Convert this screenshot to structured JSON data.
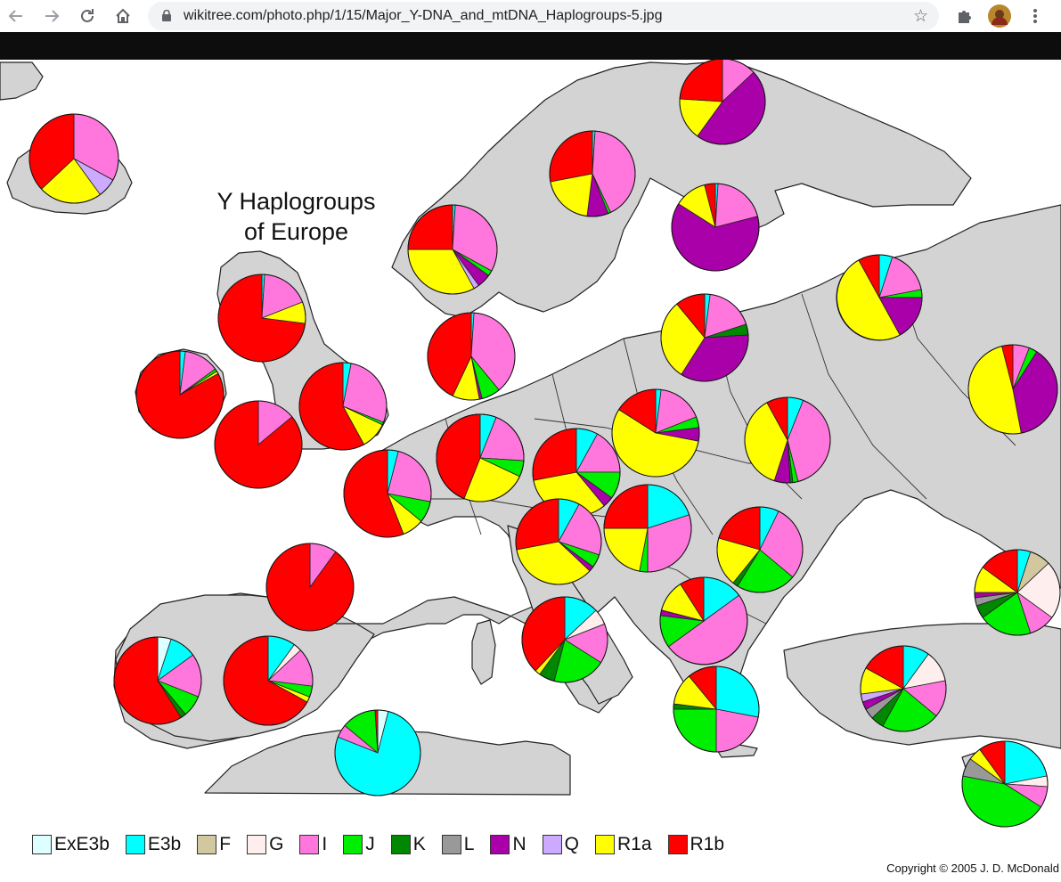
{
  "browser": {
    "url": "wikitree.com/photo.php/1/15/Major_Y-DNA_and_mtDNA_Haplogroups-5.jpg",
    "back_icon": "arrow-left-icon",
    "forward_icon": "arrow-right-icon",
    "reload_icon": "reload-icon",
    "home_icon": "home-icon"
  },
  "map": {
    "title_line1": "Y Haplogroups",
    "title_line2": "of Europe",
    "copyright": "Copyright © 2005  J. D. McDonald"
  },
  "legend": [
    {
      "label": "ExE3b",
      "color": "#ddffff"
    },
    {
      "label": "E3b",
      "color": "#00ffff"
    },
    {
      "label": "F",
      "color": "#d2c8a0"
    },
    {
      "label": "G",
      "color": "#ffeeee"
    },
    {
      "label": "I",
      "color": "#ff77dd"
    },
    {
      "label": "J",
      "color": "#00ee00"
    },
    {
      "label": "K",
      "color": "#008800"
    },
    {
      "label": "L",
      "color": "#999999"
    },
    {
      "label": "N",
      "color": "#aa00aa"
    },
    {
      "label": "Q",
      "color": "#ccaaff"
    },
    {
      "label": "R1a",
      "color": "#ffff00"
    },
    {
      "label": "R1b",
      "color": "#ff0000"
    }
  ],
  "chart_data": {
    "type": "pie",
    "pies": [
      {
        "region": "iceland",
        "slices": {
          "I": 33,
          "Q": 7,
          "R1a": 23,
          "R1b": 37
        }
      },
      {
        "region": "norway",
        "slices": {
          "E3b": 1,
          "I": 32,
          "J": 2,
          "N": 5,
          "Q": 2,
          "R1a": 33,
          "R1b": 25
        }
      },
      {
        "region": "sweden",
        "slices": {
          "E3b": 1,
          "I": 42,
          "J": 1,
          "N": 8,
          "R1a": 20,
          "R1b": 28
        }
      },
      {
        "region": "finland",
        "slices": {
          "E3b": 1,
          "I": 20,
          "N": 63,
          "R1a": 12,
          "R1b": 4
        }
      },
      {
        "region": "kola",
        "slices": {
          "I": 13,
          "N": 47,
          "R1a": 16,
          "R1b": 24
        }
      },
      {
        "region": "scotland",
        "slices": {
          "E3b": 1,
          "I": 18,
          "R1a": 8,
          "R1b": 73
        }
      },
      {
        "region": "ireland",
        "slices": {
          "E3b": 2,
          "I": 13,
          "J": 1,
          "R1a": 1,
          "R1b": 83
        }
      },
      {
        "region": "wales",
        "slices": {
          "I": 14,
          "R1b": 86
        }
      },
      {
        "region": "england",
        "slices": {
          "E3b": 3,
          "I": 28,
          "J": 1,
          "R1a": 10,
          "R1b": 58
        }
      },
      {
        "region": "denmark",
        "slices": {
          "E3b": 1,
          "I": 38,
          "J": 7,
          "N": 1,
          "R1a": 10,
          "R1b": 43
        }
      },
      {
        "region": "estonia",
        "slices": {
          "E3b": 2,
          "I": 18,
          "K": 4,
          "N": 35,
          "R1a": 30,
          "R1b": 11
        }
      },
      {
        "region": "n-russia",
        "slices": {
          "E3b": 5,
          "I": 17,
          "J": 3,
          "N": 17,
          "R1a": 50,
          "R1b": 8
        }
      },
      {
        "region": "c-russia",
        "slices": {
          "I": 6,
          "J": 3,
          "N": 38,
          "R1a": 49,
          "R1b": 4
        }
      },
      {
        "region": "netherlands",
        "slices": {
          "E3b": 5,
          "I": 27,
          "J": 5,
          "K": 1,
          "R1a": 18,
          "R1b": 44
        }
      },
      {
        "region": "poland",
        "slices": {
          "E3b": 2,
          "I": 17,
          "J": 4,
          "N": 5,
          "R1a": 56,
          "R1b": 16
        }
      },
      {
        "region": "belarus",
        "slices": {
          "E3b": 6,
          "I": 40,
          "J": 2,
          "K": 1,
          "N": 6,
          "R1a": 37,
          "R1b": 8
        }
      },
      {
        "region": "france",
        "slices": {
          "E3b": 4,
          "I": 24,
          "J": 8,
          "R1a": 8,
          "R1b": 56
        }
      },
      {
        "region": "germany",
        "slices": {
          "E3b": 6,
          "I": 20,
          "J": 6,
          "R1a": 24,
          "R1b": 44
        }
      },
      {
        "region": "czech",
        "slices": {
          "E3b": 8,
          "I": 17,
          "J": 10,
          "N": 4,
          "R1a": 33,
          "R1b": 28
        }
      },
      {
        "region": "bay-of-biscay",
        "slices": {
          "I": 10,
          "R1b": 90
        }
      },
      {
        "region": "switzerland",
        "slices": {
          "E3b": 8,
          "I": 22,
          "J": 5,
          "N": 2,
          "R1a": 35,
          "R1b": 28
        }
      },
      {
        "region": "hungary",
        "slices": {
          "E3b": 20,
          "I": 30,
          "J": 3,
          "R1a": 22,
          "R1b": 25
        }
      },
      {
        "region": "romania",
        "slices": {
          "E3b": 7,
          "I": 28,
          "J": 22,
          "K": 2,
          "R1a": 18,
          "R1b": 20
        }
      },
      {
        "region": "caucasus",
        "slices": {
          "E3b": 5,
          "F": 8,
          "G": 22,
          "I": 10,
          "J": 20,
          "K": 5,
          "L": 3,
          "N": 2,
          "R1a": 10,
          "R1b": 15
        }
      },
      {
        "region": "portugal",
        "slices": {
          "ExE3b": 5,
          "E3b": 10,
          "I": 16,
          "J": 8,
          "K": 2,
          "R1b": 59
        }
      },
      {
        "region": "spain",
        "slices": {
          "E3b": 10,
          "G": 3,
          "I": 14,
          "J": 4,
          "R1a": 2,
          "R1b": 67
        }
      },
      {
        "region": "italy",
        "slices": {
          "E3b": 13,
          "G": 6,
          "I": 15,
          "J": 20,
          "K": 6,
          "R1a": 2,
          "R1b": 38
        }
      },
      {
        "region": "balkans",
        "slices": {
          "E3b": 15,
          "I": 50,
          "J": 12,
          "N": 2,
          "R1a": 12,
          "R1b": 9
        }
      },
      {
        "region": "greece",
        "slices": {
          "E3b": 28,
          "I": 22,
          "J": 25,
          "K": 2,
          "R1a": 12,
          "R1b": 11
        }
      },
      {
        "region": "morocco",
        "slices": {
          "ExE3b": 4,
          "E3b": 77,
          "I": 5,
          "J": 13,
          "R1b": 1
        }
      },
      {
        "region": "anatolia",
        "slices": {
          "E3b": 10,
          "G": 12,
          "I": 14,
          "J": 22,
          "K": 5,
          "L": 4,
          "N": 3,
          "Q": 3,
          "R1a": 10,
          "R1b": 17
        }
      },
      {
        "region": "levant",
        "slices": {
          "E3b": 22,
          "G": 4,
          "I": 8,
          "J": 44,
          "L": 7,
          "R1a": 5,
          "R1b": 10
        }
      }
    ]
  }
}
